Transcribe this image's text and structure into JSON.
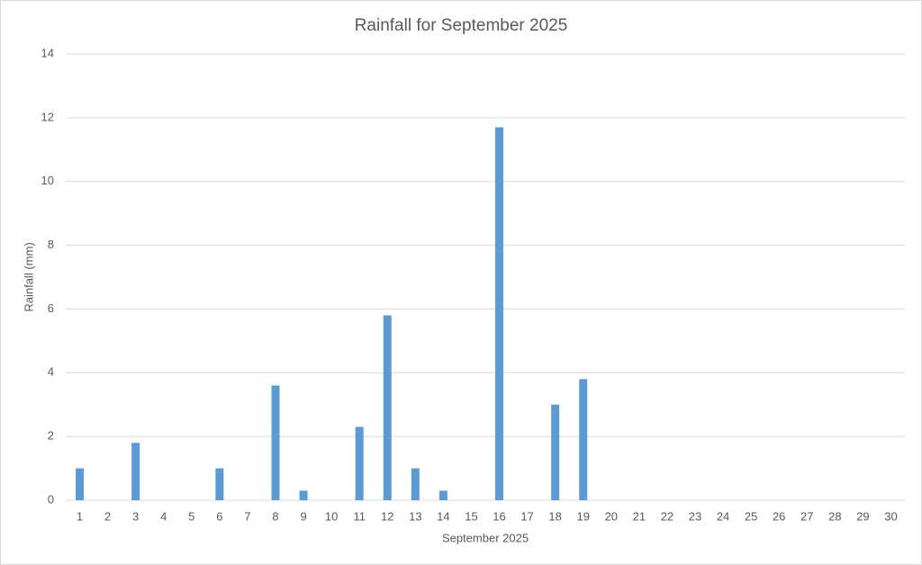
{
  "chart_data": {
    "type": "bar",
    "title": "Rainfall for September 2025",
    "x_label": "September 2025",
    "y_label": "Rainfall (mm)",
    "categories": [
      "1",
      "2",
      "3",
      "4",
      "5",
      "6",
      "7",
      "8",
      "9",
      "10",
      "11",
      "12",
      "13",
      "14",
      "15",
      "16",
      "17",
      "18",
      "19",
      "20",
      "21",
      "22",
      "23",
      "24",
      "25",
      "26",
      "27",
      "28",
      "29",
      "30"
    ],
    "values": [
      1,
      0,
      1.8,
      0,
      0,
      1,
      0,
      3.6,
      0.3,
      0,
      2.3,
      5.8,
      1,
      0.3,
      0,
      11.7,
      0,
      3,
      3.8,
      0,
      0,
      0,
      0,
      0,
      0,
      0,
      0,
      0,
      0,
      0
    ],
    "color": "#5b9bd5",
    "ylim": [
      0,
      14
    ],
    "yticks": [
      0,
      2,
      4,
      6,
      8,
      10,
      12,
      14
    ],
    "grid": true
  }
}
